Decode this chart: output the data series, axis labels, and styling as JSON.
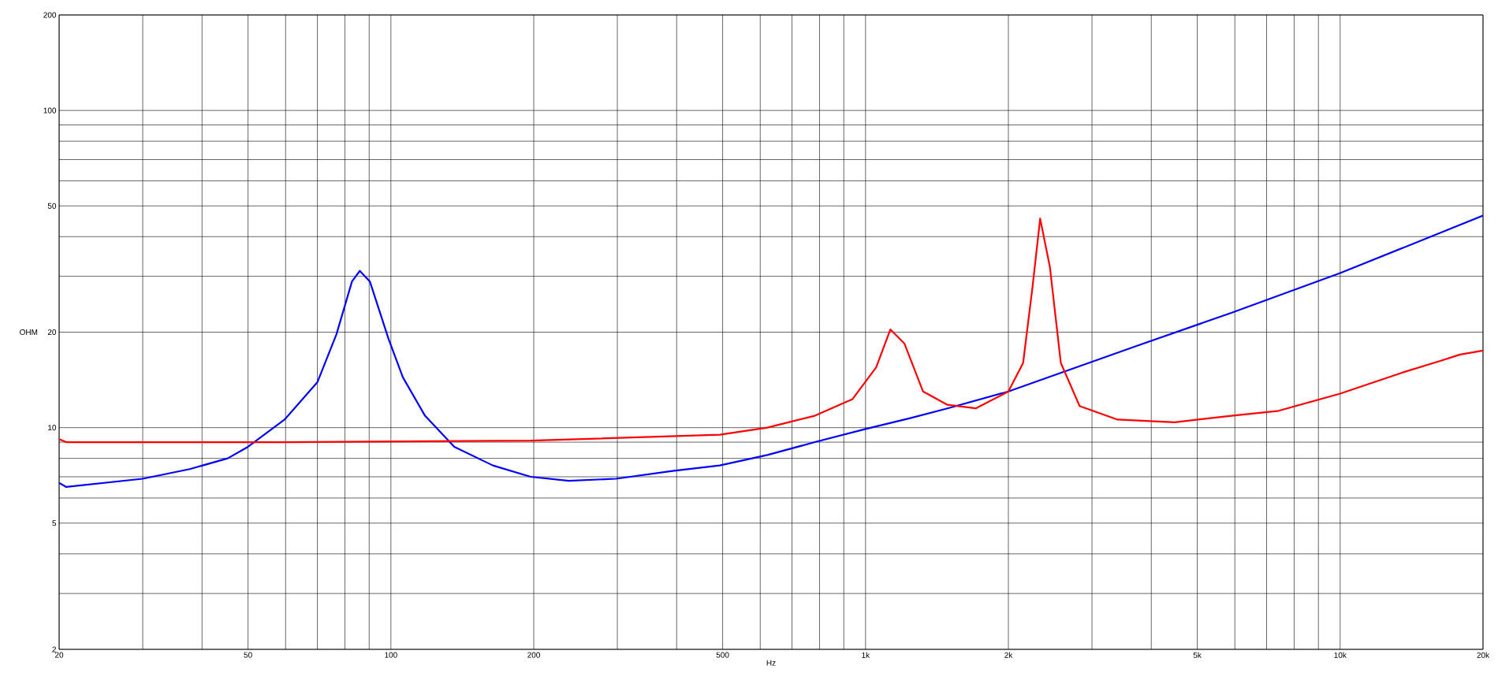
{
  "chart_data": {
    "type": "line",
    "xlabel": "Hz",
    "ylabel": "OHM",
    "log": "xy",
    "grid": true,
    "xlim": [
      20,
      20000
    ],
    "ylim": [
      2,
      200
    ],
    "xticks": [
      20,
      {
        "value": 30,
        "label": null
      },
      {
        "value": 40,
        "label": null
      },
      50,
      {
        "value": 60,
        "label": null
      },
      {
        "value": 70,
        "label": null
      },
      {
        "value": 80,
        "label": null
      },
      {
        "value": 90,
        "label": null
      },
      100,
      200,
      {
        "value": 300,
        "label": null
      },
      {
        "value": 400,
        "label": null
      },
      500,
      {
        "value": 600,
        "label": null
      },
      {
        "value": 700,
        "label": null
      },
      {
        "value": 800,
        "label": null
      },
      {
        "value": 900,
        "label": null
      },
      {
        "value": 1000,
        "label": "1k"
      },
      {
        "value": 2000,
        "label": "2k"
      },
      {
        "value": 3000,
        "label": null
      },
      {
        "value": 4000,
        "label": null
      },
      {
        "value": 5000,
        "label": "5k"
      },
      {
        "value": 6000,
        "label": null
      },
      {
        "value": 7000,
        "label": null
      },
      {
        "value": 8000,
        "label": null
      },
      {
        "value": 9000,
        "label": null
      },
      {
        "value": 10000,
        "label": "10k"
      },
      {
        "value": 20000,
        "label": "20k"
      }
    ],
    "yticks": [
      2,
      {
        "value": 3,
        "label": null
      },
      {
        "value": 4,
        "label": null
      },
      5,
      {
        "value": 6,
        "label": null
      },
      {
        "value": 7,
        "label": null
      },
      {
        "value": 8,
        "label": null
      },
      {
        "value": 9,
        "label": null
      },
      10,
      20,
      {
        "value": 30,
        "label": null
      },
      {
        "value": 40,
        "label": null
      },
      50,
      {
        "value": 60,
        "label": null
      },
      {
        "value": 70,
        "label": null
      },
      {
        "value": 80,
        "label": null
      },
      {
        "value": 90,
        "label": null
      },
      100,
      200
    ],
    "series": [
      {
        "color": "#0000ff",
        "x": [
          20,
          20.7,
          30,
          37.7,
          45.3,
          50,
          59.7,
          70,
          76.8,
          82.8,
          86,
          90.3,
          98.9,
          106,
          118,
          136,
          164,
          197,
          237,
          298,
          392,
          493,
          621,
          782,
          1000,
          1237,
          1488,
          2000,
          3725,
          5898,
          10000,
          20000
        ],
        "values": [
          6.7,
          6.5,
          6.9,
          7.4,
          8.0,
          8.7,
          10.6,
          13.9,
          19.7,
          28.9,
          31.2,
          28.9,
          19.0,
          14.4,
          10.9,
          8.7,
          7.6,
          7.0,
          6.8,
          6.9,
          7.3,
          7.6,
          8.2,
          9.0,
          9.9,
          10.7,
          11.5,
          13.0,
          18.1,
          23.0,
          30.7,
          46.6
        ]
      },
      {
        "color": "#ff0000",
        "x": [
          20,
          20.7,
          59.7,
          197,
          493,
          621,
          782,
          939,
          1053,
          1128,
          1208,
          1322,
          1488,
          1707,
          2000,
          2148,
          2249,
          2333,
          2446,
          2579,
          2825,
          3397,
          4479,
          5898,
          7420,
          10000,
          13500,
          16200,
          17900,
          20000
        ],
        "values": [
          9.2,
          9.0,
          9.0,
          9.1,
          9.5,
          10.0,
          10.9,
          12.3,
          15.5,
          20.4,
          18.4,
          13.0,
          11.8,
          11.5,
          13.0,
          16.0,
          27.9,
          45.6,
          32.1,
          16.0,
          11.7,
          10.6,
          10.4,
          10.9,
          11.3,
          12.8,
          14.9,
          16.2,
          17.0,
          17.5
        ]
      }
    ]
  }
}
